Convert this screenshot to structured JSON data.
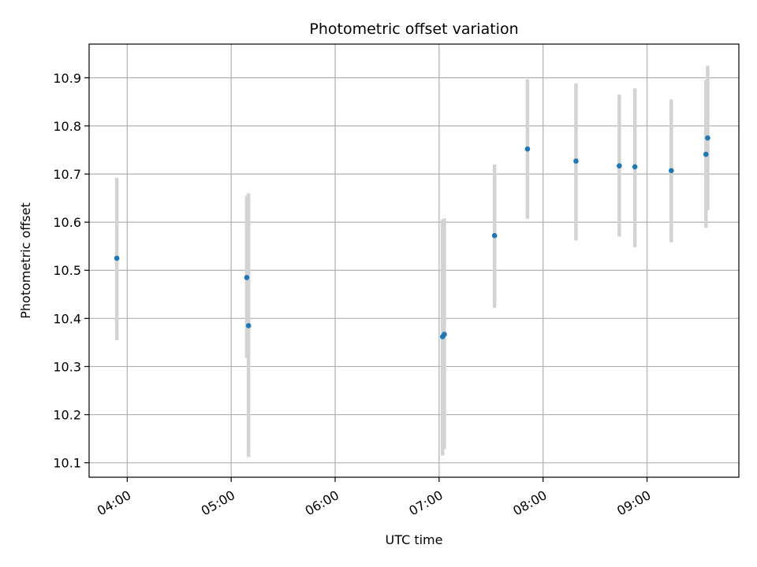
{
  "chart_data": {
    "type": "scatter",
    "title": "Photometric offset variation",
    "xlabel": "UTC time",
    "ylabel": "Photometric offset",
    "x_ticks": [
      "04:00",
      "05:00",
      "06:00",
      "07:00",
      "08:00",
      "09:00"
    ],
    "y_ticks": [
      "10.1",
      "10.2",
      "10.3",
      "10.4",
      "10.5",
      "10.6",
      "10.7",
      "10.8",
      "10.9"
    ],
    "xlim": [
      "03:38",
      "09:53"
    ],
    "ylim": [
      10.07,
      10.97
    ],
    "grid": true,
    "colors": {
      "point": "#1f77b4",
      "errorbar": "#d3d3d3",
      "grid": "#b0b0b0"
    },
    "series": [
      {
        "points": [
          {
            "x": "03:54",
            "y": 10.525,
            "yerr_low": 10.355,
            "yerr_high": 10.692
          },
          {
            "x": "05:09",
            "y": 10.485,
            "yerr_low": 10.318,
            "yerr_high": 10.655
          },
          {
            "x": "05:10",
            "y": 10.385,
            "yerr_low": 10.112,
            "yerr_high": 10.66
          },
          {
            "x": "07:02",
            "y": 10.362,
            "yerr_low": 10.115,
            "yerr_high": 10.605
          },
          {
            "x": "07:03",
            "y": 10.367,
            "yerr_low": 10.128,
            "yerr_high": 10.608
          },
          {
            "x": "07:32",
            "y": 10.572,
            "yerr_low": 10.422,
            "yerr_high": 10.72
          },
          {
            "x": "07:51",
            "y": 10.752,
            "yerr_low": 10.607,
            "yerr_high": 10.897
          },
          {
            "x": "08:19",
            "y": 10.727,
            "yerr_low": 10.562,
            "yerr_high": 10.888
          },
          {
            "x": "08:44",
            "y": 10.717,
            "yerr_low": 10.57,
            "yerr_high": 10.865
          },
          {
            "x": "08:53",
            "y": 10.715,
            "yerr_low": 10.548,
            "yerr_high": 10.878
          },
          {
            "x": "09:14",
            "y": 10.707,
            "yerr_low": 10.558,
            "yerr_high": 10.855
          },
          {
            "x": "09:34",
            "y": 10.741,
            "yerr_low": 10.588,
            "yerr_high": 10.895
          },
          {
            "x": "09:35",
            "y": 10.775,
            "yerr_low": 10.625,
            "yerr_high": 10.925
          }
        ]
      }
    ]
  }
}
